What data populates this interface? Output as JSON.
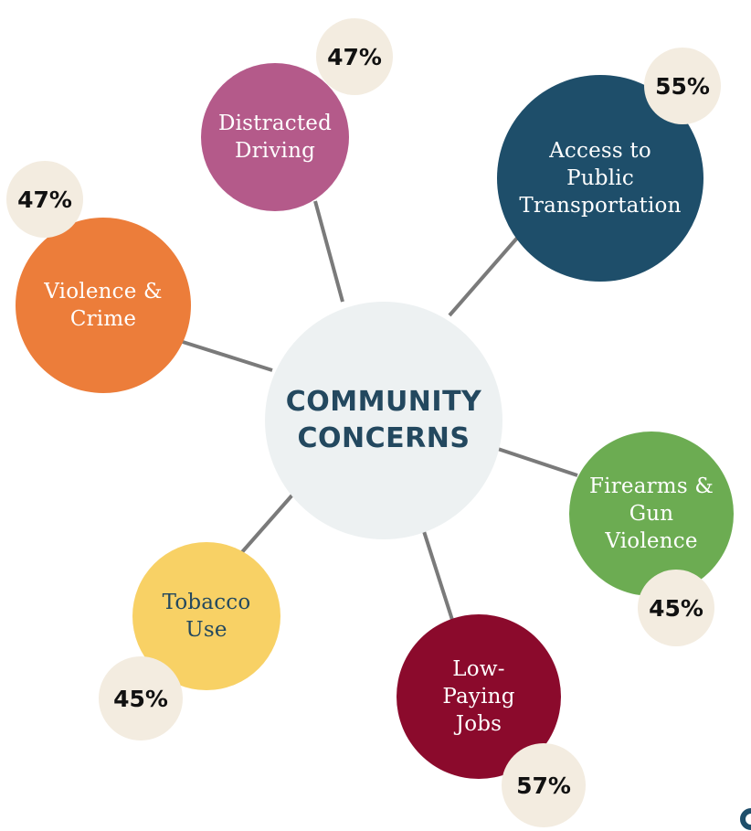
{
  "center": {
    "title": "COMMUNITY\nCONCERNS",
    "color": "#edf1f2",
    "text_color": "#23485f"
  },
  "connector_color": "#7a7a7a",
  "nodes": [
    {
      "label": "Distracted\nDriving",
      "percent": "47%",
      "color": "#b45a8a",
      "text_color": "#ffffff"
    },
    {
      "label": "Access to\nPublic\nTransportation",
      "percent": "55%",
      "color": "#1e4e6a",
      "text_color": "#ffffff"
    },
    {
      "label": "Violence &\nCrime",
      "percent": "47%",
      "color": "#ec7d3a",
      "text_color": "#ffffff"
    },
    {
      "label": "Firearms &\nGun\nViolence",
      "percent": "45%",
      "color": "#6cac52",
      "text_color": "#ffffff"
    },
    {
      "label": "Tobacco\nUse",
      "percent": "45%",
      "color": "#f8d165",
      "text_color": "#23485f"
    },
    {
      "label": "Low-\nPaying\nJobs",
      "percent": "57%",
      "color": "#8b0a2c",
      "text_color": "#ffffff"
    }
  ],
  "percent_badge_color": "#f3ece0"
}
